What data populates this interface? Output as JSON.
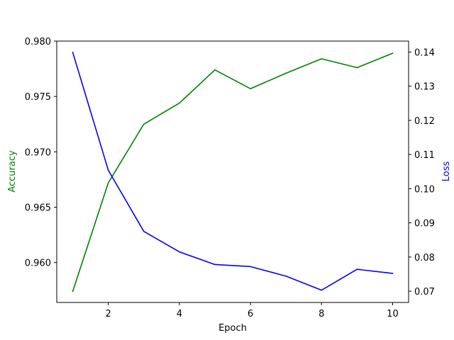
{
  "chart_data": {
    "type": "line",
    "xlabel": "Epoch",
    "x": [
      1,
      2,
      3,
      4,
      5,
      6,
      7,
      8,
      9,
      10
    ],
    "x_ticks": [
      2,
      4,
      6,
      8,
      10
    ],
    "xlim": [
      0.55,
      10.45
    ],
    "grid": false,
    "axes": {
      "left": {
        "label": "Accuracy",
        "color": "#008000",
        "ylim": [
          0.9564,
          0.98
        ],
        "ticks": [
          0.96,
          0.965,
          0.97,
          0.975,
          0.98
        ],
        "tick_labels": [
          "0.960",
          "0.965",
          "0.970",
          "0.975",
          "0.980"
        ]
      },
      "right": {
        "label": "Loss",
        "color": "#0000ff",
        "ylim": [
          0.0667,
          0.1432
        ],
        "ticks": [
          0.07,
          0.08,
          0.09,
          0.1,
          0.11,
          0.12,
          0.13,
          0.14
        ],
        "tick_labels": [
          "0.07",
          "0.08",
          "0.09",
          "0.10",
          "0.11",
          "0.12",
          "0.13",
          "0.14"
        ]
      }
    },
    "series": [
      {
        "axis": "left",
        "color": "#008000",
        "values": [
          0.9574,
          0.9672,
          0.9725,
          0.9744,
          0.9774,
          0.9757,
          0.9771,
          0.9784,
          0.9776,
          0.9789
        ]
      },
      {
        "axis": "right",
        "color": "#0000ff",
        "values": [
          0.1399,
          0.1054,
          0.0875,
          0.0815,
          0.0778,
          0.0772,
          0.0744,
          0.0703,
          0.0764,
          0.0752
        ]
      }
    ]
  }
}
